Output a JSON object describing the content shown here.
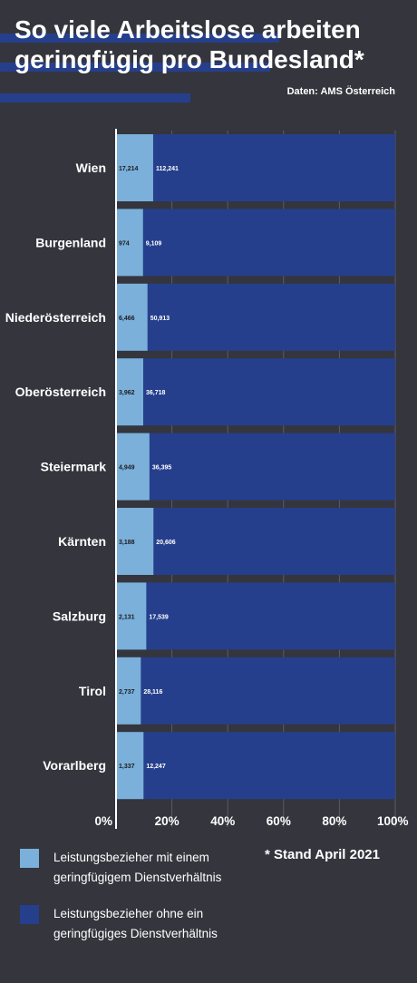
{
  "header": {
    "title": "So viele Arbeitslose arbeiten geringfügig pro Bundesland*",
    "source": "Daten: AMS Österreich"
  },
  "colors": {
    "background": "#34353d",
    "series_light": "#7ab0d9",
    "series_dark": "#253f8c",
    "grid": "#5a5c66",
    "axis": "#ffffff"
  },
  "chart_data": {
    "type": "bar",
    "orientation": "horizontal",
    "stacked": "percent",
    "categories": [
      "Wien",
      "Burgenland",
      "Niederösterreich",
      "Oberösterreich",
      "Steiermark",
      "Kärnten",
      "Salzburg",
      "Tirol",
      "Vorarlberg"
    ],
    "series": [
      {
        "name": "Leistungsbezieher mit einem geringfügigem Dienstverhältnis",
        "color": "#7ab0d9",
        "values": [
          17214,
          974,
          6466,
          3962,
          4949,
          3188,
          2131,
          2737,
          1337
        ],
        "labels": [
          "17,214",
          "974",
          "6,466",
          "3,962",
          "4,949",
          "3,188",
          "2,131",
          "2,737",
          "1,337"
        ]
      },
      {
        "name": "Leistungsbezieher ohne ein geringfügiges Dienstverhältnis",
        "color": "#253f8c",
        "values": [
          112241,
          9109,
          50913,
          36718,
          36395,
          20606,
          17539,
          28116,
          12247
        ],
        "labels": [
          "112,241",
          "9,109",
          "50,913",
          "36,718",
          "36,395",
          "20,606",
          "17,539",
          "28,116",
          "12,247"
        ]
      }
    ],
    "xlim": [
      0,
      100
    ],
    "x_ticks": [
      "0%",
      "20%",
      "40%",
      "60%",
      "80%",
      "100%"
    ],
    "grid": true,
    "legend_position": "bottom"
  },
  "legend": [
    {
      "label": "Leistungsbezieher mit einem geringfügigem Dienstverhältnis",
      "color": "#7ab0d9"
    },
    {
      "label": "Leistungsbezieher ohne ein geringfügiges Dienstverhältnis",
      "color": "#253f8c"
    }
  ],
  "footnote": "* Stand April 2021"
}
